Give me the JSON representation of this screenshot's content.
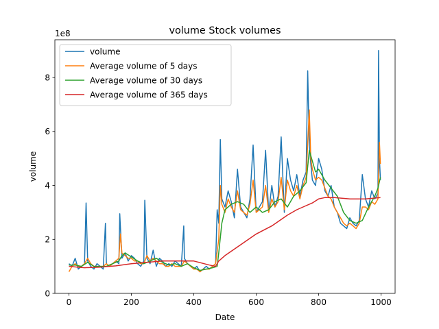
{
  "chart_data": {
    "type": "line",
    "title": "volume Stock volumes",
    "xlabel": "Date",
    "ylabel": "volume",
    "offset_label": "1e8",
    "xlim": [
      -45,
      1045
    ],
    "ylim": [
      0,
      9.4
    ],
    "xticks": [
      0,
      200,
      400,
      600,
      800,
      1000
    ],
    "yticks": [
      0,
      2,
      4,
      6,
      8
    ],
    "legend_position": "top-left",
    "grid": false,
    "series": [
      {
        "name": "volume",
        "color": "#1f77b4",
        "x": [
          0,
          10,
          20,
          30,
          40,
          50,
          55,
          60,
          70,
          80,
          90,
          100,
          110,
          117,
          120,
          130,
          140,
          150,
          160,
          163,
          170,
          180,
          190,
          200,
          210,
          220,
          230,
          240,
          243,
          250,
          260,
          270,
          280,
          290,
          300,
          310,
          320,
          330,
          340,
          350,
          360,
          368,
          370,
          380,
          390,
          400,
          410,
          420,
          430,
          440,
          450,
          460,
          470,
          475,
          480,
          485,
          490,
          500,
          510,
          520,
          530,
          540,
          550,
          560,
          570,
          580,
          590,
          600,
          610,
          620,
          630,
          640,
          650,
          660,
          670,
          680,
          690,
          700,
          710,
          720,
          730,
          740,
          750,
          760,
          765,
          770,
          775,
          780,
          790,
          800,
          810,
          820,
          830,
          840,
          850,
          860,
          870,
          880,
          890,
          900,
          910,
          920,
          930,
          940,
          950,
          960,
          970,
          980,
          990,
          992,
          995,
          998
        ],
        "y": [
          1.1,
          1.0,
          1.3,
          0.9,
          1.0,
          1.1,
          3.35,
          1.2,
          1.0,
          0.9,
          1.1,
          1.0,
          0.9,
          2.6,
          1.1,
          1.0,
          1.1,
          1.2,
          1.1,
          2.95,
          1.3,
          1.5,
          1.2,
          1.4,
          1.3,
          1.1,
          1.0,
          1.2,
          3.45,
          1.3,
          1.1,
          1.6,
          1.0,
          1.3,
          1.2,
          1.0,
          1.1,
          1.0,
          1.2,
          1.1,
          1.0,
          2.5,
          1.3,
          1.1,
          1.0,
          0.9,
          1.0,
          0.8,
          0.9,
          1.0,
          0.9,
          1.0,
          1.1,
          3.1,
          2.6,
          5.7,
          3.5,
          3.2,
          3.8,
          3.4,
          2.8,
          4.6,
          3.2,
          3.0,
          2.8,
          3.5,
          5.5,
          3.0,
          3.2,
          3.4,
          5.3,
          3.0,
          4.0,
          3.2,
          3.6,
          5.8,
          3.0,
          5.0,
          4.2,
          3.8,
          4.4,
          3.6,
          4.2,
          4.5,
          8.25,
          5.5,
          4.8,
          4.2,
          4.0,
          5.0,
          4.6,
          3.8,
          3.6,
          4.0,
          3.2,
          3.0,
          2.6,
          2.5,
          2.4,
          2.8,
          2.6,
          2.5,
          2.7,
          4.4,
          3.5,
          3.2,
          3.8,
          3.5,
          3.7,
          9.0,
          5.0,
          4.2
        ]
      },
      {
        "name": "Average volume of 5 days",
        "color": "#ff7f0e",
        "x": [
          0,
          10,
          20,
          30,
          40,
          50,
          60,
          70,
          80,
          90,
          100,
          110,
          120,
          130,
          140,
          150,
          160,
          165,
          170,
          180,
          190,
          200,
          210,
          220,
          230,
          240,
          250,
          260,
          270,
          280,
          290,
          300,
          310,
          320,
          330,
          340,
          350,
          360,
          370,
          380,
          390,
          400,
          410,
          420,
          430,
          440,
          450,
          460,
          470,
          480,
          485,
          490,
          500,
          510,
          520,
          530,
          540,
          550,
          560,
          570,
          580,
          590,
          600,
          610,
          620,
          630,
          640,
          650,
          660,
          670,
          680,
          690,
          700,
          710,
          720,
          730,
          740,
          750,
          760,
          770,
          775,
          780,
          790,
          800,
          810,
          820,
          830,
          840,
          850,
          860,
          870,
          880,
          890,
          900,
          910,
          920,
          930,
          940,
          950,
          960,
          970,
          980,
          990,
          995,
          998
        ],
        "y": [
          0.8,
          1.0,
          1.1,
          1.0,
          1.0,
          1.1,
          1.3,
          1.1,
          1.0,
          1.0,
          1.0,
          1.0,
          1.1,
          1.0,
          1.1,
          1.2,
          1.3,
          2.2,
          1.5,
          1.4,
          1.3,
          1.3,
          1.2,
          1.2,
          1.1,
          1.1,
          1.4,
          1.2,
          1.3,
          1.2,
          1.1,
          1.1,
          1.0,
          1.0,
          1.1,
          1.0,
          1.0,
          1.0,
          1.2,
          1.1,
          1.0,
          0.9,
          0.9,
          0.8,
          0.9,
          0.9,
          0.9,
          1.0,
          1.1,
          2.0,
          4.0,
          3.3,
          3.0,
          3.5,
          3.2,
          3.0,
          3.8,
          3.1,
          3.0,
          2.9,
          3.3,
          4.2,
          3.0,
          3.1,
          3.2,
          4.0,
          3.0,
          3.5,
          3.2,
          3.4,
          4.3,
          3.1,
          4.2,
          3.8,
          3.6,
          4.0,
          3.5,
          4.0,
          4.3,
          6.8,
          5.0,
          4.6,
          4.2,
          4.3,
          4.2,
          3.9,
          3.6,
          3.5,
          3.2,
          3.0,
          2.8,
          2.6,
          2.5,
          2.6,
          2.5,
          2.4,
          2.6,
          3.2,
          3.2,
          3.1,
          3.4,
          3.3,
          3.5,
          5.6,
          4.8
        ]
      },
      {
        "name": "Average volume of 30 days",
        "color": "#2ca02c",
        "x": [
          0,
          20,
          40,
          60,
          80,
          100,
          120,
          140,
          160,
          170,
          180,
          200,
          220,
          240,
          260,
          280,
          300,
          320,
          340,
          360,
          380,
          400,
          420,
          440,
          460,
          475,
          480,
          490,
          500,
          520,
          540,
          560,
          580,
          600,
          620,
          640,
          660,
          680,
          700,
          720,
          740,
          760,
          770,
          780,
          790,
          800,
          820,
          840,
          860,
          880,
          900,
          920,
          940,
          960,
          980,
          990,
          998
        ],
        "y": [
          1.05,
          1.05,
          1.0,
          1.15,
          1.0,
          1.0,
          1.0,
          1.1,
          1.2,
          1.4,
          1.5,
          1.35,
          1.2,
          1.1,
          1.2,
          1.3,
          1.15,
          1.05,
          1.1,
          1.0,
          1.1,
          0.95,
          0.85,
          0.9,
          0.95,
          1.0,
          1.5,
          2.6,
          3.1,
          3.3,
          3.4,
          3.3,
          3.0,
          3.2,
          3.0,
          3.1,
          3.4,
          3.5,
          3.2,
          3.6,
          3.8,
          4.1,
          5.3,
          4.9,
          4.5,
          4.6,
          4.2,
          3.9,
          3.6,
          3.0,
          2.7,
          2.6,
          2.7,
          3.2,
          3.6,
          3.9,
          4.3
        ]
      },
      {
        "name": "Average volume of 365 days",
        "color": "#d62728",
        "x": [
          0,
          50,
          100,
          150,
          200,
          250,
          300,
          350,
          400,
          450,
          470,
          480,
          500,
          550,
          600,
          650,
          700,
          730,
          750,
          780,
          800,
          820,
          850,
          900,
          950,
          998
        ],
        "y": [
          1.0,
          0.95,
          0.97,
          1.02,
          1.1,
          1.15,
          1.2,
          1.2,
          1.2,
          1.05,
          1.0,
          1.2,
          1.4,
          1.8,
          2.2,
          2.5,
          2.9,
          3.1,
          3.2,
          3.35,
          3.5,
          3.55,
          3.55,
          3.5,
          3.5,
          3.55
        ]
      }
    ]
  }
}
